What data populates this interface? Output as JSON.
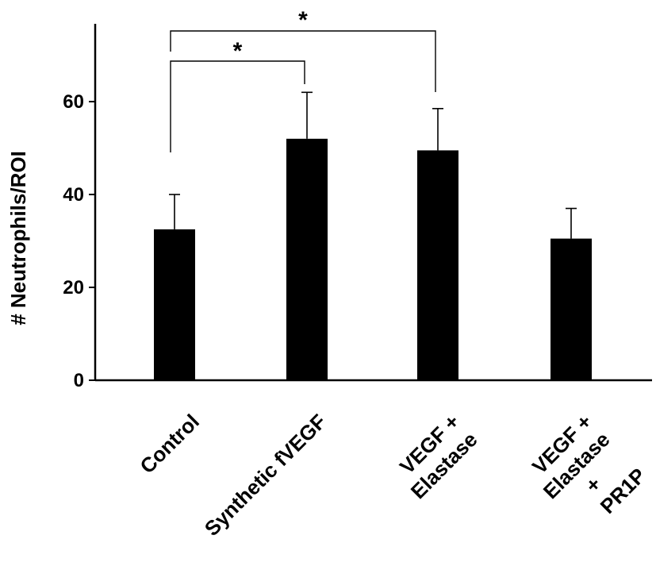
{
  "chart_data": {
    "type": "bar",
    "title": "",
    "xlabel": "",
    "ylabel": "# Neutrophils/ROI",
    "ylim": [
      0,
      75
    ],
    "yticks": [
      0,
      20,
      40,
      60
    ],
    "grid": false,
    "categories": [
      [
        "Control"
      ],
      [
        "Synthetic  fVEGF"
      ],
      [
        "VEGF +",
        "Elastase"
      ],
      [
        "VEGF +",
        "Elastase",
        "+",
        "PR1P"
      ]
    ],
    "values": [
      32.5,
      52,
      49.5,
      30.5
    ],
    "error": [
      7.5,
      10,
      9,
      6.5
    ],
    "bar_color": "#000000",
    "significance": [
      {
        "from": 0,
        "to": 1,
        "label": "*"
      },
      {
        "from": 0,
        "to": 2,
        "label": "*"
      }
    ]
  }
}
